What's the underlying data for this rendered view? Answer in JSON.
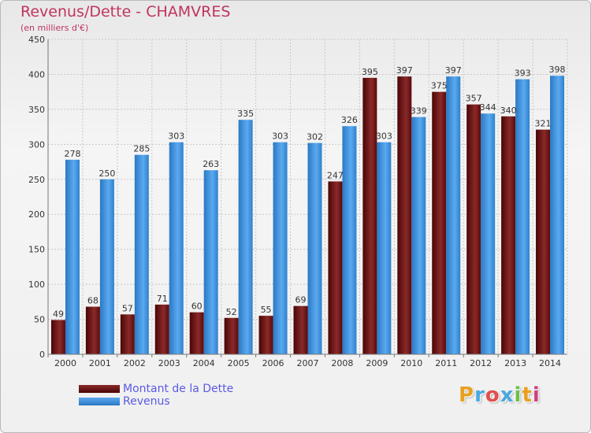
{
  "title": "Revenus/Dette - CHAMVRES",
  "subtitle": "(en milliers d'€)",
  "logo": {
    "text": "Proxiti",
    "colors": [
      "#e8a020",
      "#4aa8e0",
      "#e05050",
      "#4aa8e0",
      "#6cc04a",
      "#e8a020",
      "#d04080"
    ]
  },
  "colors": {
    "dette": "#6b0f0f",
    "revenus": "#3d8fd8",
    "grid": "#c8c8c8",
    "title": "#c0345e",
    "legend_text": "#5a5ae6"
  },
  "legend": [
    {
      "label": "Montant de la Dette"
    },
    {
      "label": "Revenus"
    }
  ],
  "chart_data": {
    "type": "bar",
    "categories": [
      "2000",
      "2001",
      "2002",
      "2003",
      "2004",
      "2005",
      "2006",
      "2007",
      "2008",
      "2009",
      "2010",
      "2011",
      "2012",
      "2013",
      "2014"
    ],
    "series": [
      {
        "name": "Montant de la Dette",
        "values": [
          49,
          68,
          57,
          71,
          60,
          52,
          55,
          69,
          247,
          395,
          397,
          375,
          357,
          340,
          321
        ]
      },
      {
        "name": "Revenus",
        "values": [
          278,
          250,
          285,
          303,
          263,
          335,
          303,
          302,
          326,
          303,
          339,
          397,
          344,
          393,
          398
        ]
      }
    ],
    "ylim": [
      0,
      450
    ],
    "yticks": [
      0,
      50,
      100,
      150,
      200,
      250,
      300,
      350,
      400,
      450
    ],
    "grid": true,
    "legend_position": "bottom-left"
  }
}
